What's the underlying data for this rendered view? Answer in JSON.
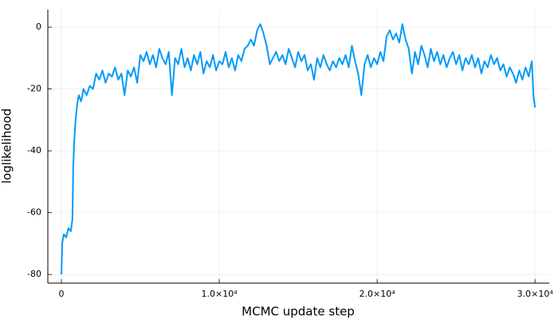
{
  "chart_data": {
    "type": "line",
    "xlabel": "MCMC update step",
    "ylabel": "loglikelihood",
    "color": "#009af9",
    "grid": true,
    "xlim": [
      -860,
      30900
    ],
    "ylim": [
      -82.8,
      5.7
    ],
    "xticks": [
      0,
      {
        "value": 10000,
        "label": "1.0×10⁴"
      },
      {
        "value": 20000,
        "label": "2.0×10⁴"
      },
      {
        "value": 30000,
        "label": "3.0×10⁴"
      }
    ],
    "yticks": [
      -80,
      -60,
      -40,
      -20,
      0
    ],
    "x": [
      0,
      50,
      150,
      300,
      450,
      600,
      700,
      750,
      800,
      900,
      1000,
      1100,
      1250,
      1400,
      1600,
      1800,
      2000,
      2200,
      2400,
      2600,
      2800,
      3000,
      3200,
      3400,
      3600,
      3800,
      4000,
      4200,
      4400,
      4600,
      4800,
      5000,
      5200,
      5400,
      5600,
      5800,
      6000,
      6200,
      6400,
      6600,
      6800,
      7000,
      7200,
      7400,
      7600,
      7800,
      8000,
      8200,
      8400,
      8600,
      8800,
      9000,
      9200,
      9400,
      9600,
      9800,
      10000,
      10200,
      10400,
      10600,
      10800,
      11000,
      11200,
      11400,
      11600,
      11800,
      12000,
      12200,
      12400,
      12600,
      12800,
      13000,
      13200,
      13400,
      13600,
      13800,
      14000,
      14200,
      14400,
      14600,
      14800,
      15000,
      15200,
      15400,
      15600,
      15800,
      16000,
      16200,
      16400,
      16600,
      16800,
      17000,
      17200,
      17400,
      17600,
      17800,
      18000,
      18200,
      18400,
      18600,
      18800,
      19000,
      19200,
      19400,
      19600,
      19800,
      20000,
      20200,
      20400,
      20600,
      20800,
      21000,
      21200,
      21400,
      21600,
      21800,
      22000,
      22200,
      22400,
      22600,
      22800,
      23000,
      23200,
      23400,
      23600,
      23800,
      24000,
      24200,
      24400,
      24600,
      24800,
      25000,
      25200,
      25400,
      25600,
      25800,
      26000,
      26200,
      26400,
      26600,
      26800,
      27000,
      27200,
      27400,
      27600,
      27800,
      28000,
      28200,
      28400,
      28600,
      28800,
      29000,
      29200,
      29400,
      29600,
      29800,
      29900,
      30000
    ],
    "values": [
      -80,
      -70,
      -67,
      -68,
      -65,
      -66,
      -62,
      -45,
      -38,
      -30,
      -25,
      -22,
      -24,
      -20,
      -22,
      -19,
      -20,
      -15,
      -17,
      -14,
      -18,
      -15,
      -16,
      -13,
      -17,
      -15,
      -22,
      -14,
      -16,
      -13,
      -18,
      -9,
      -11,
      -8,
      -12,
      -9,
      -13,
      -7,
      -10,
      -12,
      -8,
      -22,
      -10,
      -12,
      -7,
      -13,
      -10,
      -14,
      -9,
      -12,
      -8,
      -15,
      -11,
      -13,
      -9,
      -14,
      -11,
      -12,
      -8,
      -13,
      -10,
      -14,
      -9,
      -11,
      -7,
      -6,
      -4,
      -6,
      -1,
      1,
      -2,
      -6,
      -12,
      -10,
      -8,
      -11,
      -9,
      -12,
      -7,
      -10,
      -13,
      -8,
      -11,
      -9,
      -14,
      -12,
      -17,
      -10,
      -13,
      -9,
      -12,
      -14,
      -11,
      -13,
      -10,
      -12,
      -9,
      -13,
      -6,
      -11,
      -15,
      -22,
      -12,
      -9,
      -13,
      -10,
      -12,
      -8,
      -11,
      -3,
      -1,
      -4,
      -2,
      -5,
      1,
      -4,
      -7,
      -15,
      -8,
      -12,
      -6,
      -9,
      -13,
      -7,
      -11,
      -8,
      -12,
      -9,
      -13,
      -10,
      -8,
      -12,
      -9,
      -14,
      -10,
      -12,
      -9,
      -13,
      -10,
      -15,
      -11,
      -13,
      -9,
      -12,
      -10,
      -14,
      -12,
      -16,
      -13,
      -15,
      -18,
      -14,
      -17,
      -13,
      -16,
      -11,
      -22,
      -26
    ]
  }
}
